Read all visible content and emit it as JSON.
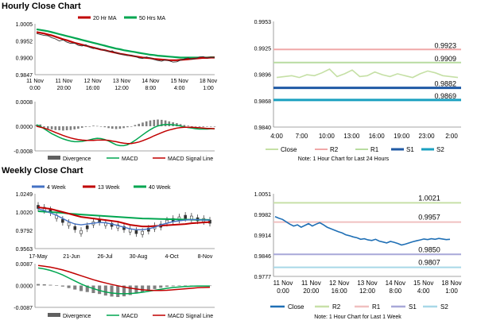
{
  "hourly_title": "Hourly Close Chart",
  "weekly_title": "Weekly Close Chart",
  "colors": {
    "ma20": "#c00000",
    "ma50": "#00a650",
    "price": "#333333",
    "close_green": "#c5e0a5",
    "r2": "#f0a8a8",
    "r1": "#b8dca0",
    "s1": "#1f5aa5",
    "s2": "#1aa0c0",
    "weekly_close": "#1f6fb5",
    "weekly_r2": "#c8e0a8",
    "weekly_r1": "#f0c0c0",
    "weekly_s1": "#a8a8d8",
    "weekly_s2": "#a8d8e8",
    "w4": "#4472c4",
    "w13": "#c00000",
    "w40": "#00a650",
    "macd": "#00a650",
    "signal": "#c00000",
    "divergence": "#808080"
  },
  "chart_data": [
    {
      "id": "hourly-price",
      "type": "line",
      "legend": [
        "20 Hr MA",
        "50 Hrs MA"
      ],
      "x_ticks": [
        "11 Nov\n0:00",
        "11 Nov\n20:00",
        "12 Nov\n16:00",
        "13 Nov\n12:00",
        "14 Nov\n8:00",
        "15 Nov\n4:00",
        "18 Nov\n1:00"
      ],
      "y_ticks": [
        "1.0005",
        "0.9952",
        "0.9900",
        "0.9847"
      ],
      "ylim": [
        0.9847,
        1.0005
      ],
      "series": [
        {
          "name": "Close",
          "values": [
            0.9975,
            0.9972,
            0.9969,
            0.9968,
            0.9962,
            0.9958,
            0.9952,
            0.9955,
            0.9948,
            0.9944,
            0.9945,
            0.9938,
            0.9936,
            0.994,
            0.9932,
            0.9928,
            0.993,
            0.9926,
            0.9922,
            0.9919,
            0.9921,
            0.9914,
            0.9912,
            0.9909,
            0.9906,
            0.9908,
            0.9904,
            0.9899,
            0.9897,
            0.9902,
            0.9899,
            0.9894,
            0.9891,
            0.9889,
            0.9893,
            0.989,
            0.9886,
            0.9887,
            0.9892,
            0.9896,
            0.9899,
            0.9895,
            0.9897,
            0.9902,
            0.9903,
            0.9899,
            0.9901,
            0.99
          ]
        },
        {
          "name": "20 Hr MA",
          "values": [
            0.9979,
            0.9977,
            0.9975,
            0.9972,
            0.9969,
            0.9965,
            0.9961,
            0.9957,
            0.9954,
            0.995,
            0.9946,
            0.9943,
            0.994,
            0.9937,
            0.9934,
            0.9931,
            0.9928,
            0.9925,
            0.9923,
            0.992,
            0.9917,
            0.9915,
            0.9912,
            0.991,
            0.9908,
            0.9906,
            0.9904,
            0.9902,
            0.99,
            0.9899,
            0.9898,
            0.9896,
            0.9895,
            0.9894,
            0.9893,
            0.9892,
            0.9892,
            0.9892,
            0.9893,
            0.9894,
            0.9895,
            0.9896,
            0.9897,
            0.9898,
            0.9899,
            0.9899,
            0.99,
            0.99
          ]
        },
        {
          "name": "50 Hrs MA",
          "values": [
            0.9988,
            0.9986,
            0.9984,
            0.9982,
            0.9979,
            0.9976,
            0.9973,
            0.997,
            0.9967,
            0.9964,
            0.9961,
            0.9958,
            0.9955,
            0.9952,
            0.9949,
            0.9946,
            0.9943,
            0.994,
            0.9937,
            0.9934,
            0.9931,
            0.9928,
            0.9926,
            0.9923,
            0.9921,
            0.9919,
            0.9917,
            0.9915,
            0.9913,
            0.9911,
            0.9909,
            0.9908,
            0.9906,
            0.9905,
            0.9904,
            0.9903,
            0.9902,
            0.9901,
            0.99,
            0.99,
            0.99,
            0.99,
            0.99,
            0.99,
            0.99,
            0.99,
            0.9901,
            0.9901
          ]
        }
      ]
    },
    {
      "id": "hourly-macd",
      "type": "line",
      "legend": [
        "Divergence",
        "MACD",
        "MACD Signal Line"
      ],
      "y_ticks": [
        "0.0008",
        "0.0000",
        "-0.0008"
      ],
      "ylim": [
        -0.0008,
        0.0008
      ],
      "divergence": [
        5e-05,
        6e-05,
        -4e-05,
        -8e-05,
        -0.0001,
        -0.00012,
        -0.00013,
        -0.00014,
        -0.00013,
        -0.00012,
        -0.0001,
        -8e-05,
        -5e-05,
        -2e-05,
        0.0,
        2e-05,
        1e-05,
        -1e-05,
        -3e-05,
        -6e-05,
        -8e-05,
        -9e-05,
        -8e-05,
        -6e-05,
        -3e-05,
        0.0,
        4e-05,
        8e-05,
        0.00012,
        0.00016,
        0.00019,
        0.00021,
        0.00022,
        0.00021,
        0.00019,
        0.00016,
        0.00013,
        0.0001,
        7e-05,
        4e-05,
        2e-05,
        0.0,
        -1e-05,
        -2e-05,
        -2e-05,
        -1e-05,
        0.0,
        0.0
      ],
      "series": [
        {
          "name": "MACD",
          "values": [
            5e-05,
            0.0,
            -8e-05,
            -0.00016,
            -0.00024,
            -0.0003,
            -0.00036,
            -0.00041,
            -0.00045,
            -0.00048,
            -0.0005,
            -0.0005,
            -0.00049,
            -0.00047,
            -0.00044,
            -0.00041,
            -0.00039,
            -0.0004,
            -0.00043,
            -0.00048,
            -0.00054,
            -0.0006,
            -0.00063,
            -0.00063,
            -0.0006,
            -0.00054,
            -0.00046,
            -0.00037,
            -0.00028,
            -0.00019,
            -0.00011,
            -4e-05,
            1e-05,
            4e-05,
            6e-05,
            6e-05,
            5e-05,
            3e-05,
            1e-05,
            -2e-05,
            -4e-05,
            -6e-05,
            -8e-05,
            -9e-05,
            -9e-05,
            -9e-05,
            -8e-05,
            -8e-05
          ]
        },
        {
          "name": "MACD Signal Line",
          "values": [
            0.0,
            -3e-05,
            -6e-05,
            -0.0001,
            -0.00015,
            -0.0002,
            -0.00025,
            -0.0003,
            -0.00034,
            -0.00038,
            -0.00041,
            -0.00043,
            -0.00045,
            -0.00046,
            -0.00046,
            -0.00046,
            -0.00045,
            -0.00045,
            -0.00045,
            -0.00046,
            -0.00048,
            -0.0005,
            -0.00053,
            -0.00055,
            -0.00056,
            -0.00056,
            -0.00054,
            -0.00051,
            -0.00047,
            -0.00042,
            -0.00037,
            -0.00031,
            -0.00026,
            -0.00021,
            -0.00016,
            -0.00012,
            -9e-05,
            -6e-05,
            -4e-05,
            -3e-05,
            -3e-05,
            -3e-05,
            -4e-05,
            -5e-05,
            -6e-05,
            -7e-05,
            -7e-05,
            -8e-05
          ]
        }
      ]
    },
    {
      "id": "hourly-levels",
      "type": "line",
      "x_ticks": [
        "4:00",
        "7:00",
        "10:00",
        "13:00",
        "16:00",
        "19:00",
        "23:00",
        "2:00"
      ],
      "y_ticks": [
        "0.9953",
        "0.9925",
        "0.9896",
        "0.9868",
        "0.9840"
      ],
      "ylim": [
        0.984,
        0.9953
      ],
      "levels": [
        {
          "name": "R2",
          "value": 0.9923,
          "label": "0.9923"
        },
        {
          "name": "R1",
          "value": 0.9909,
          "label": "0.9909"
        },
        {
          "name": "S1",
          "value": 0.9882,
          "label": "0.9882"
        },
        {
          "name": "S2",
          "value": 0.9869,
          "label": "0.9869"
        }
      ],
      "series": [
        {
          "name": "Close",
          "values": [
            0.9893,
            0.9894,
            0.9895,
            0.9893,
            0.9896,
            0.9895,
            0.9898,
            0.9902,
            0.9894,
            0.9897,
            0.9901,
            0.9894,
            0.9895,
            0.9899,
            0.9896,
            0.9894,
            0.9897,
            0.9895,
            0.9893,
            0.9897,
            0.99,
            0.9898,
            0.9895,
            0.9894,
            0.9893
          ]
        }
      ],
      "legend": [
        "Close",
        "R2",
        "R1",
        "S1",
        "S2"
      ],
      "note": "Note: 1 Hour Chart for Last 24 Hours"
    },
    {
      "id": "weekly-price",
      "type": "line",
      "legend": [
        "4 Week",
        "13 Week",
        "40 Week"
      ],
      "x_ticks": [
        "17-May",
        "21-Jun",
        "26-Jul",
        "30-Aug",
        "4-Oct",
        "8-Nov"
      ],
      "y_ticks": [
        "1.0249",
        "1.0020",
        "0.9792",
        "0.9563"
      ],
      "ylim": [
        0.9563,
        1.0249
      ],
      "candles": [
        1.0085,
        1.006,
        1.003,
        0.996,
        0.991,
        0.987,
        0.982,
        0.977,
        0.983,
        0.988,
        0.991,
        0.987,
        0.986,
        0.984,
        0.982,
        0.979,
        0.977,
        0.976,
        0.98,
        0.983,
        0.985,
        0.99,
        0.992,
        0.994,
        0.996,
        0.995,
        0.993,
        0.992,
        0.99
      ],
      "series": [
        {
          "name": "4 Week",
          "values": [
            1.006,
            1.004,
            1.001,
            0.998,
            0.994,
            0.99,
            0.987,
            0.986,
            0.987,
            0.988,
            0.989,
            0.9885,
            0.987,
            0.985,
            0.983,
            0.981,
            0.98,
            0.98,
            0.981,
            0.983,
            0.986,
            0.988,
            0.99,
            0.991,
            0.992,
            0.9925,
            0.9925,
            0.992,
            0.992
          ]
        },
        {
          "name": "13 Week",
          "values": [
            1.008,
            1.007,
            1.006,
            1.004,
            1.002,
            1.0,
            0.998,
            0.996,
            0.995,
            0.994,
            0.993,
            0.992,
            0.991,
            0.99,
            0.988,
            0.986,
            0.985,
            0.984,
            0.984,
            0.9845,
            0.985,
            0.9855,
            0.986,
            0.9865,
            0.987,
            0.988,
            0.9885,
            0.989,
            0.9895
          ]
        },
        {
          "name": "40 Week",
          "values": [
            1.003,
            1.0025,
            1.002,
            1.0015,
            1.001,
            1.0,
            0.9995,
            0.999,
            0.9985,
            0.998,
            0.9975,
            0.997,
            0.9965,
            0.996,
            0.9955,
            0.995,
            0.9945,
            0.994,
            0.9938,
            0.9936,
            0.9934,
            0.9932,
            0.993,
            0.9928,
            0.9926,
            0.9925,
            0.9924,
            0.9923,
            0.9922
          ]
        }
      ]
    },
    {
      "id": "weekly-macd",
      "type": "line",
      "legend": [
        "Divergence",
        "MACD",
        "MACD Signal Line"
      ],
      "y_ticks": [
        "0.0087",
        "0.0000",
        "-0.0087"
      ],
      "ylim": [
        -0.0087,
        0.0087
      ],
      "divergence": [
        0.0006,
        0.0005,
        0.0003,
        0.0001,
        -0.0004,
        -0.001,
        -0.0016,
        -0.0022,
        -0.0026,
        -0.003,
        -0.0034,
        -0.004,
        -0.0044,
        -0.0046,
        -0.0043,
        -0.0038,
        -0.0032,
        -0.0026,
        -0.002,
        -0.0014,
        -0.0009,
        -0.0005,
        -0.0003,
        -0.0002,
        -0.0001,
        0.0,
        0.0,
        0.0,
        0.0
      ],
      "series": [
        {
          "name": "MACD",
          "values": [
            0.007,
            0.0066,
            0.006,
            0.0052,
            0.0042,
            0.003,
            0.0018,
            0.0006,
            -0.0004,
            -0.0012,
            -0.002,
            -0.0026,
            -0.003,
            -0.0032,
            -0.0033,
            -0.0032,
            -0.003,
            -0.0027,
            -0.0023,
            -0.0019,
            -0.0015,
            -0.0011,
            -0.0008,
            -0.0006,
            -0.0004,
            -0.0003,
            -0.0002,
            -0.0002,
            -0.0002
          ]
        },
        {
          "name": "MACD Signal Line",
          "values": [
            0.008,
            0.0077,
            0.0073,
            0.0068,
            0.0062,
            0.0055,
            0.0047,
            0.0039,
            0.0031,
            0.0023,
            0.0016,
            0.001,
            0.0004,
            -0.0001,
            -0.0006,
            -0.001,
            -0.0014,
            -0.0017,
            -0.0019,
            -0.002,
            -0.002,
            -0.0019,
            -0.0017,
            -0.0015,
            -0.0013,
            -0.0011,
            -0.0009,
            -0.0008,
            -0.0007
          ]
        }
      ]
    },
    {
      "id": "weekly-levels",
      "type": "line",
      "x_ticks": [
        "11 Nov\n0:00",
        "11 Nov\n20:00",
        "12 Nov\n16:00",
        "13 Nov\n12:00",
        "14 Nov\n8:00",
        "15 Nov\n4:00",
        "18 Nov\n1:00"
      ],
      "y_ticks": [
        "1.0051",
        "0.9982",
        "0.9914",
        "0.9846",
        "0.9777"
      ],
      "ylim": [
        0.9777,
        1.0051
      ],
      "levels": [
        {
          "name": "R2",
          "value": 1.0021,
          "label": "1.0021"
        },
        {
          "name": "R1",
          "value": 0.9957,
          "label": "0.9957"
        },
        {
          "name": "S1",
          "value": 0.985,
          "label": "0.9850"
        },
        {
          "name": "S2",
          "value": 0.9807,
          "label": "0.9807"
        }
      ],
      "series": [
        {
          "name": "Close",
          "values": [
            0.9975,
            0.997,
            0.9966,
            0.9958,
            0.995,
            0.9944,
            0.9948,
            0.994,
            0.9946,
            0.9952,
            0.9944,
            0.995,
            0.9955,
            0.9948,
            0.994,
            0.9935,
            0.993,
            0.9925,
            0.9921,
            0.9915,
            0.9912,
            0.9908,
            0.9905,
            0.99,
            0.9902,
            0.9898,
            0.9896,
            0.99,
            0.9894,
            0.9891,
            0.9888,
            0.9893,
            0.989,
            0.9886,
            0.9881,
            0.9884,
            0.9888,
            0.9892,
            0.9895,
            0.9898,
            0.9901,
            0.9899,
            0.9902,
            0.99,
            0.9903,
            0.9901,
            0.9899,
            0.99
          ]
        }
      ],
      "legend": [
        "Close",
        "R2",
        "R1",
        "S1",
        "S2"
      ],
      "note": "Note: 1 Hour Chart for Last 1 Week"
    }
  ]
}
